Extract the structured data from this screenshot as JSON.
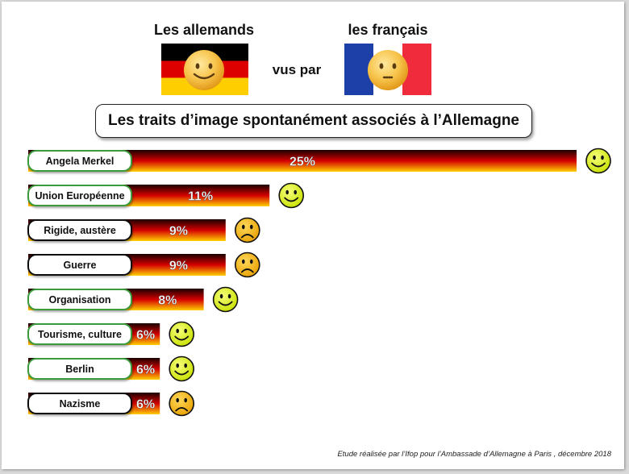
{
  "header": {
    "left_title": "Les allemands",
    "right_title": "les français",
    "connector": "vus par"
  },
  "subtitle": "Les traits d’image spontanément associés à l’Allemagne",
  "footnote": "Etude réalisée par l’Ifop pour l’Ambassade d’Allemagne à Paris , décembre 2018",
  "colors": {
    "green_border": "#3a9a3a",
    "black_border": "#111111",
    "bar_top": "#1a0000",
    "bar_mid": "#d40000",
    "bar_bottom": "#ffd000",
    "smiley_fill": "#d8f000",
    "frown_fill": "#f2b400"
  },
  "chart_data": {
    "type": "bar",
    "orientation": "horizontal",
    "categories": [
      "Angela Merkel",
      "Union Européenne",
      "Rigide, austère",
      "Guerre",
      "Organisation",
      "Tourisme, culture",
      "Berlin",
      "Nazisme"
    ],
    "values": [
      25,
      11,
      9,
      9,
      8,
      6,
      6,
      6
    ],
    "value_labels": [
      "25%",
      "11%",
      "9%",
      "9%",
      "8%",
      "6%",
      "6%",
      "6%"
    ],
    "sentiment": [
      "positive",
      "positive",
      "negative",
      "negative",
      "positive",
      "positive",
      "positive",
      "negative"
    ],
    "unit": "%",
    "title": "Les traits d’image spontanément associés à l’Allemagne",
    "xlabel": "",
    "ylabel": "",
    "grid": false,
    "legend": "none"
  }
}
